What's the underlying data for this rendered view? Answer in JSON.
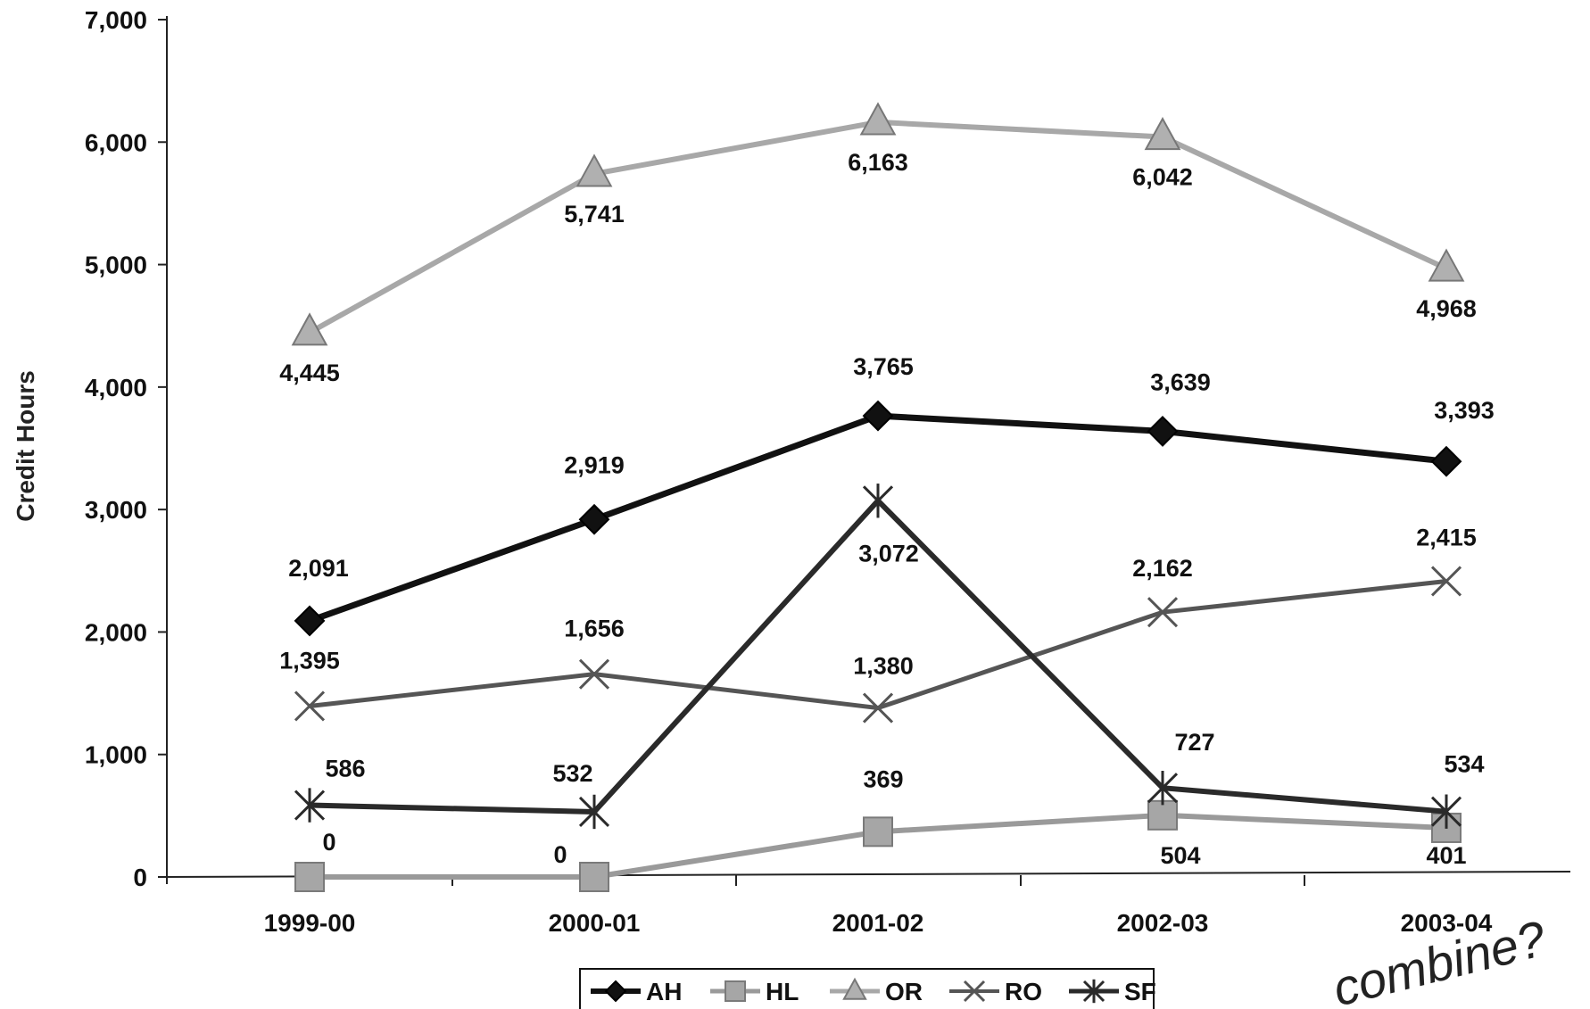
{
  "chart_data": {
    "type": "line",
    "title": "",
    "xlabel": "",
    "ylabel": "Credit Hours",
    "ylim": [
      0,
      7000
    ],
    "yticks": [
      0,
      1000,
      2000,
      3000,
      4000,
      5000,
      6000,
      7000
    ],
    "ytick_labels": [
      "0",
      "1,000",
      "2,000",
      "3,000",
      "4,000",
      "5,000",
      "6,000",
      "7,000"
    ],
    "categories": [
      "1999-00",
      "2000-01",
      "2001-02",
      "2002-03",
      "2003-04"
    ],
    "grid": false,
    "legend_position": "bottom",
    "series": [
      {
        "name": "AH",
        "values": [
          2091,
          2919,
          3765,
          3639,
          3393
        ],
        "labels": [
          "2,091",
          "2,919",
          "3,765",
          "3,639",
          "3,393"
        ],
        "color": "#111111",
        "marker": "diamond"
      },
      {
        "name": "HL",
        "values": [
          0,
          0,
          369,
          504,
          401
        ],
        "labels": [
          "0",
          "0",
          "369",
          "504",
          "401"
        ],
        "color": "#9a9a9a",
        "marker": "square"
      },
      {
        "name": "OR",
        "values": [
          4445,
          5741,
          6163,
          6042,
          4968
        ],
        "labels": [
          "4,445",
          "5,741",
          "6,163",
          "6,042",
          "4,968"
        ],
        "color": "#a8a8a8",
        "marker": "triangle"
      },
      {
        "name": "RO",
        "values": [
          1395,
          1656,
          1380,
          2162,
          2415
        ],
        "labels": [
          "1,395",
          "1,656",
          "1,380",
          "2,162",
          "2,415"
        ],
        "color": "#5a5a5a",
        "marker": "x"
      },
      {
        "name": "SF",
        "values": [
          586,
          532,
          3072,
          727,
          534
        ],
        "labels": [
          "586",
          "532",
          "3,072",
          "727",
          "534"
        ],
        "color": "#333333",
        "marker": "star"
      }
    ]
  },
  "annotations": {
    "handwritten_note": "combine?"
  }
}
